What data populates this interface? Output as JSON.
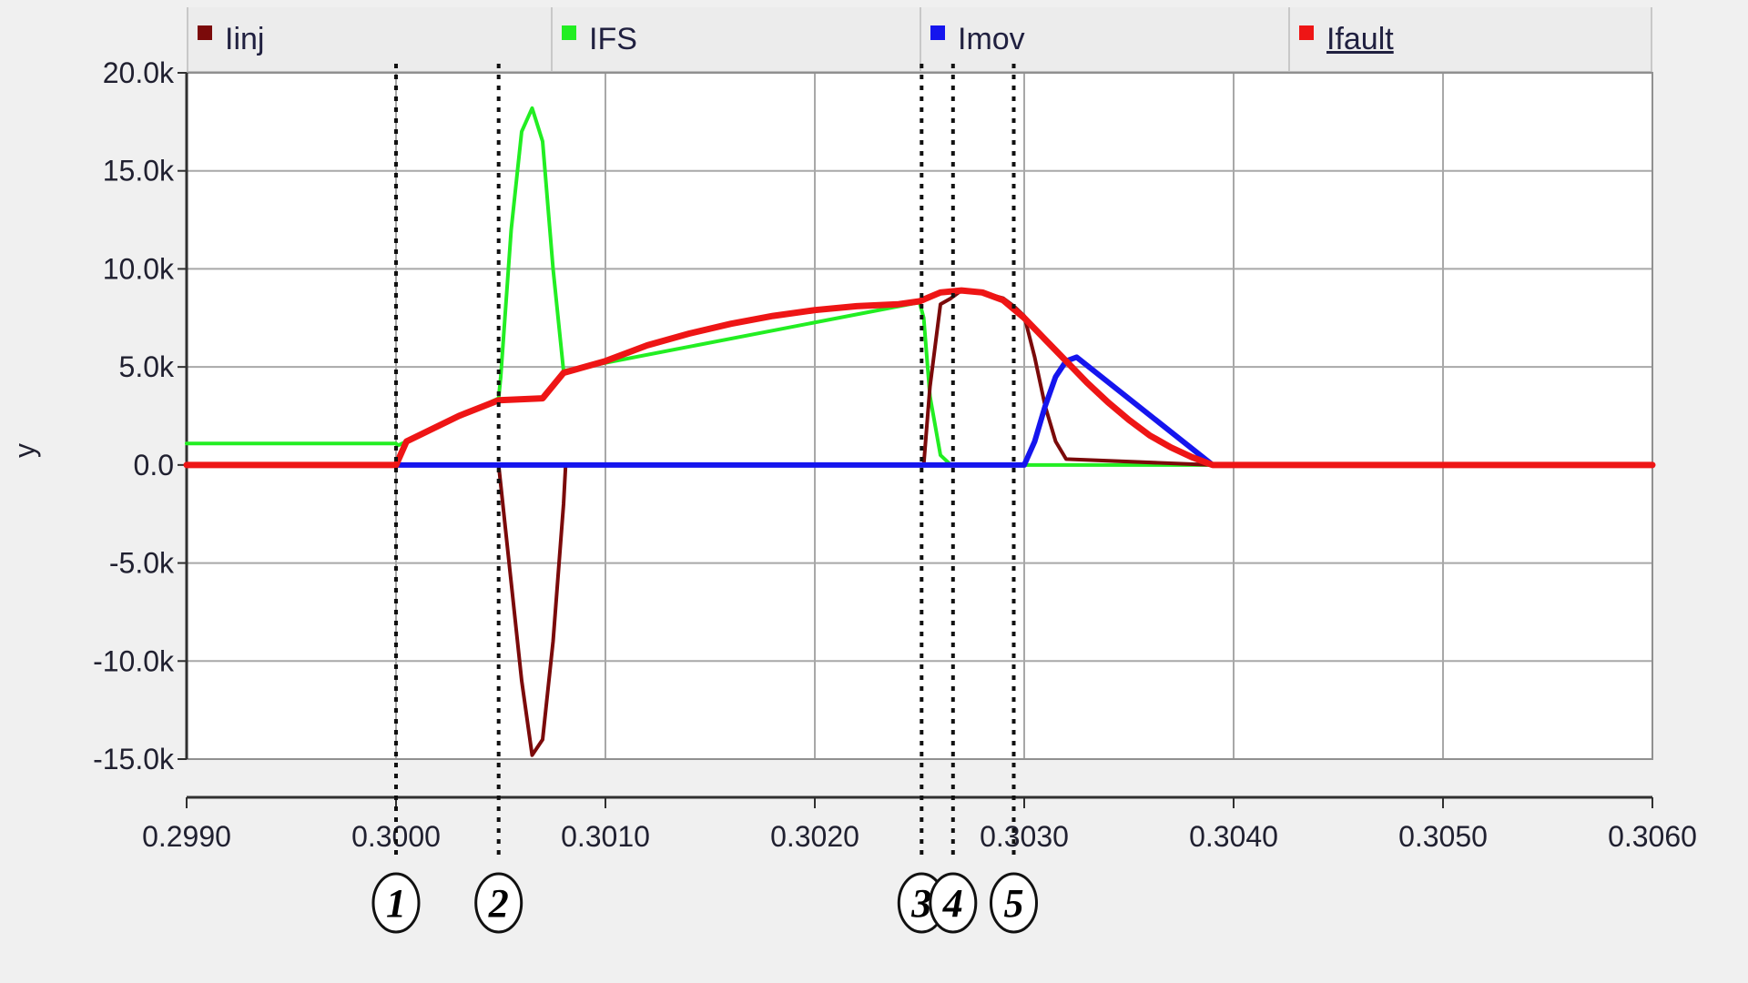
{
  "legend": {
    "items": [
      {
        "label": "Iinj",
        "color": "#7b0a0a",
        "underlined": false
      },
      {
        "label": "IFS",
        "color": "#22ee22",
        "underlined": false
      },
      {
        "label": "Imov",
        "color": "#1515ee",
        "underlined": false
      },
      {
        "label": "Ifault",
        "color": "#ee1515",
        "underlined": true
      }
    ]
  },
  "chart_data": {
    "type": "line",
    "title": "",
    "xlabel": "",
    "ylabel": "y",
    "xlim": [
      0.299,
      0.306
    ],
    "ylim": [
      -15000,
      20000
    ],
    "grid": true,
    "legend_position": "top",
    "x_ticks": [
      "0.2990",
      "0.3000",
      "0.3010",
      "0.3020",
      "0.3030",
      "0.3040",
      "0.3050",
      "0.3060"
    ],
    "x_tick_values": [
      0.299,
      0.3,
      0.301,
      0.302,
      0.303,
      0.304,
      0.305,
      0.306
    ],
    "y_ticks": [
      "20.0k",
      "15.0k",
      "10.0k",
      "5.0k",
      "0.0",
      "-5.0k",
      "-10.0k",
      "-15.0k"
    ],
    "y_tick_values": [
      20000,
      15000,
      10000,
      5000,
      0,
      -5000,
      -10000,
      -15000
    ],
    "series": [
      {
        "name": "Iinj",
        "color": "#7b0a0a",
        "x": [
          0.299,
          0.30049,
          0.3005,
          0.30055,
          0.3006,
          0.30065,
          0.3007,
          0.30075,
          0.3008,
          0.30081,
          0.3025,
          0.30252,
          0.30255,
          0.3026,
          0.30265,
          0.3027,
          0.3028,
          0.3029,
          0.30295,
          0.303,
          0.30305,
          0.3031,
          0.30315,
          0.3032,
          0.3039,
          0.306
        ],
        "y": [
          0,
          0,
          -1000,
          -6000,
          -11000,
          -14800,
          -14000,
          -9000,
          -2000,
          0,
          0,
          0,
          4000,
          8200,
          8500,
          8900,
          8800,
          8500,
          8100,
          7600,
          5500,
          3000,
          1200,
          300,
          0,
          0
        ]
      },
      {
        "name": "IFS",
        "color": "#22ee22",
        "x": [
          0.299,
          0.3,
          0.30001,
          0.30049,
          0.3005,
          0.30055,
          0.3006,
          0.30065,
          0.3007,
          0.30075,
          0.3008,
          0.3025,
          0.30252,
          0.30255,
          0.3026,
          0.30265,
          0.3039,
          0.306
        ],
        "y": [
          1100,
          1100,
          1000,
          3400,
          4500,
          12000,
          17000,
          18200,
          16500,
          10000,
          4800,
          8300,
          7500,
          3500,
          500,
          0,
          0,
          0
        ]
      },
      {
        "name": "Imov",
        "color": "#1515ee",
        "x": [
          0.299,
          0.303,
          0.30305,
          0.3031,
          0.30315,
          0.3032,
          0.30325,
          0.3039,
          0.306
        ],
        "y": [
          0,
          0,
          1200,
          3000,
          4500,
          5300,
          5500,
          0,
          0
        ]
      },
      {
        "name": "Ifault",
        "color": "#ee1515",
        "x": [
          0.299,
          0.3,
          0.30005,
          0.3003,
          0.30049,
          0.3007,
          0.3008,
          0.301,
          0.3012,
          0.3014,
          0.3016,
          0.3018,
          0.302,
          0.3022,
          0.3024,
          0.3025,
          0.3026,
          0.3027,
          0.3028,
          0.3029,
          0.303,
          0.3031,
          0.3032,
          0.3033,
          0.3034,
          0.3035,
          0.3036,
          0.3037,
          0.3038,
          0.3039,
          0.306
        ],
        "y": [
          0,
          0,
          1200,
          2500,
          3300,
          3400,
          4700,
          5300,
          6100,
          6700,
          7200,
          7600,
          7900,
          8100,
          8200,
          8350,
          8800,
          8900,
          8800,
          8400,
          7500,
          6400,
          5300,
          4200,
          3200,
          2300,
          1500,
          900,
          400,
          0,
          0
        ]
      }
    ],
    "markers": [
      {
        "x": 0.3,
        "label": "1"
      },
      {
        "x": 0.30049,
        "label": "2"
      },
      {
        "x": 0.30251,
        "label": "3"
      },
      {
        "x": 0.30266,
        "label": "4"
      },
      {
        "x": 0.30295,
        "label": "5"
      }
    ]
  }
}
